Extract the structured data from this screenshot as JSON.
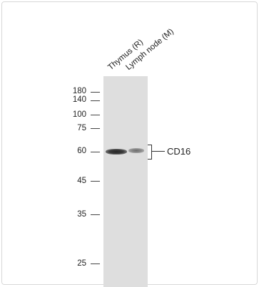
{
  "lanes": [
    {
      "label": "Thymus (R)"
    },
    {
      "label": "Lymph node (M)"
    }
  ],
  "ladder": [
    {
      "label": "180",
      "kda": 180
    },
    {
      "label": "140",
      "kda": 140
    },
    {
      "label": "100",
      "kda": 100
    },
    {
      "label": "75",
      "kda": 75
    },
    {
      "label": "60",
      "kda": 60
    },
    {
      "label": "45",
      "kda": 45
    },
    {
      "label": "35",
      "kda": 35
    },
    {
      "label": "25",
      "kda": 25
    }
  ],
  "target": {
    "label": "CD16"
  },
  "colors": {
    "membrane": "#dedede",
    "band_strong": "#2f2f2f",
    "band_weak": "#8a8a8a"
  }
}
